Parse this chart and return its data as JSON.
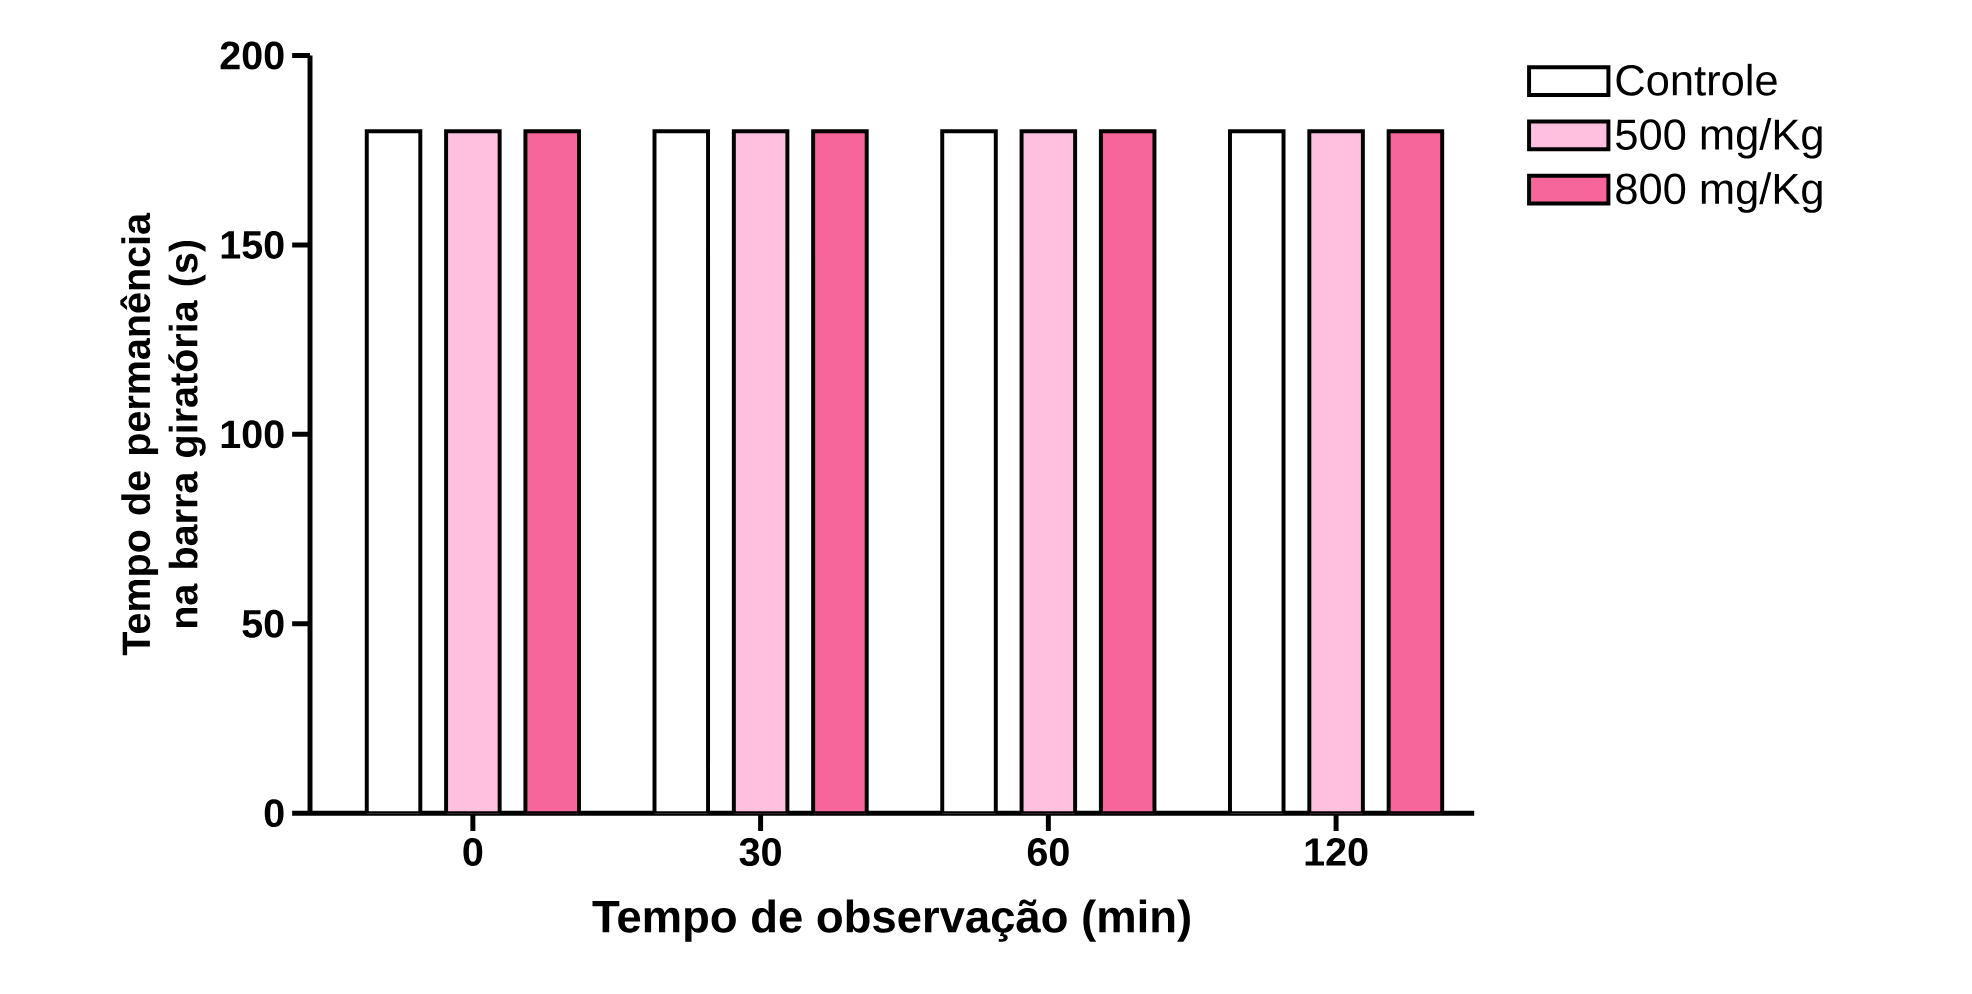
{
  "chart_data": {
    "type": "bar",
    "xlabel": "Tempo de observação (min)",
    "ylabel": "Tempo de permanência na barra giratória (s)",
    "categories": [
      "0",
      "30",
      "60",
      "120"
    ],
    "series": [
      {
        "name": "Controle",
        "color": "#ffffff",
        "values": [
          180,
          180,
          180,
          180
        ]
      },
      {
        "name": "500 mg/Kg",
        "color": "#ffc0e0",
        "values": [
          180,
          180,
          180,
          180
        ]
      },
      {
        "name": "800 mg/Kg",
        "color": "#f7669a",
        "values": [
          180,
          180,
          180,
          180
        ]
      }
    ],
    "ylim": [
      0,
      200
    ],
    "yticks": [
      0,
      50,
      100,
      150,
      200
    ],
    "legend": "right"
  }
}
